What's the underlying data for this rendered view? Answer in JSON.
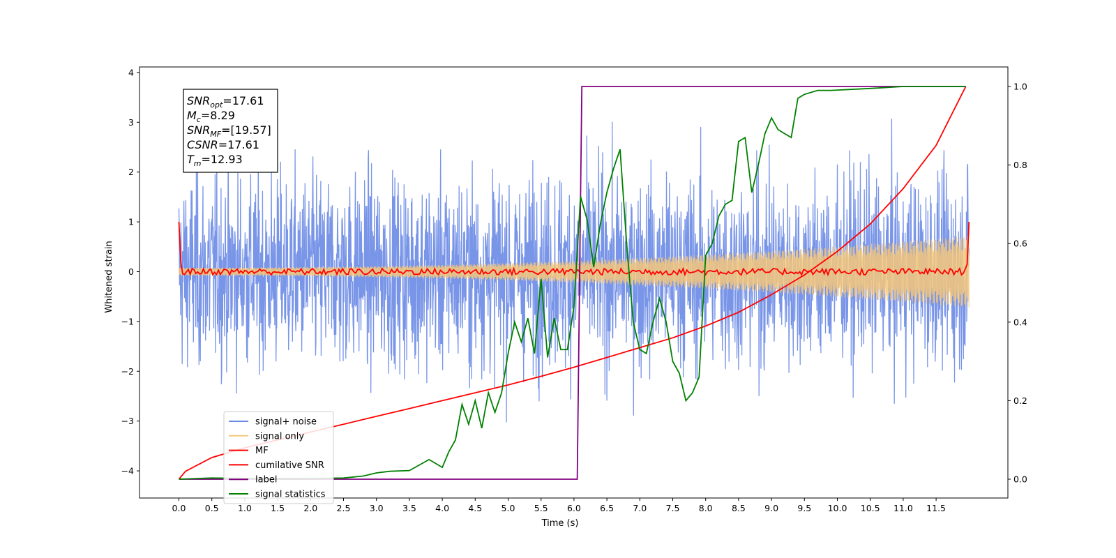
{
  "chart_data": {
    "type": "line",
    "xlabel": "Time (s)",
    "ylabel": "Whitened strain",
    "xlim": [
      -0.6,
      12.6
    ],
    "ylim_left": [
      -4.5,
      4.1
    ],
    "ylim_right": [
      -0.05,
      1.035
    ],
    "x_ticks": [
      "0.0",
      "0.5",
      "1.0",
      "1.5",
      "2.0",
      "2.5",
      "3.0",
      "3.5",
      "4.0",
      "4.5",
      "5.0",
      "5.5",
      "6.0",
      "6.5",
      "7.0",
      "7.5",
      "8.0",
      "8.5",
      "9.0",
      "9.5",
      "10.0",
      "10.5",
      "11.0",
      "11.5"
    ],
    "y_ticks_left": [
      "4",
      "3",
      "2",
      "1",
      "0",
      "−1",
      "−2",
      "−3",
      "−4"
    ],
    "y_ticks_right": [
      "1.0",
      "0.8",
      "0.6",
      "0.4",
      "0.2",
      "0.0"
    ],
    "annotation": {
      "lines": [
        {
          "base": "SNR",
          "sub": "opt",
          "value": "=17.61"
        },
        {
          "base": "M",
          "sub": "c",
          "value": "=8.29"
        },
        {
          "base": "SNR",
          "sub": "MF",
          "value": "=[19.57]"
        },
        {
          "base": "CSNR",
          "sub": "",
          "value": "=17.61"
        },
        {
          "base": "T",
          "sub": "m",
          "value": "=12.93"
        }
      ]
    },
    "legend": {
      "placement": "lower-left",
      "entries": [
        {
          "label": "signal+ noise",
          "color": "#6a8ae6"
        },
        {
          "label": "signal only",
          "color": "#f5c77a"
        },
        {
          "label": "MF",
          "color": "#ff0000"
        },
        {
          "label": "cumilative SNR",
          "color": "#ff0000"
        },
        {
          "label": "label",
          "color": "#800080"
        },
        {
          "label": "signal statistics",
          "color": "#008000"
        }
      ]
    },
    "series": [
      {
        "name": "signal+ noise",
        "axis": "left",
        "color": "#6a8ae6",
        "x_range": [
          0,
          12
        ],
        "amplitude": 1.0,
        "description": "dense whitened noise"
      },
      {
        "name": "signal only",
        "axis": "left",
        "color": "#f5c77a",
        "x_range": [
          0,
          12
        ],
        "amplitude_start": 0.08,
        "amplitude_end": 0.72
      },
      {
        "name": "MF",
        "axis": "left",
        "color": "#ff0000",
        "x_range": [
          0,
          12
        ],
        "endpoints": [
          1.0,
          1.0
        ],
        "baseline": 0.0
      },
      {
        "name": "cumilative SNR",
        "axis": "right",
        "color": "#ff0000",
        "x": [
          0,
          0.1,
          0.5,
          1,
          1.5,
          2,
          2.5,
          3,
          3.5,
          4,
          4.5,
          5,
          5.5,
          6,
          6.5,
          7,
          7.5,
          8,
          8.5,
          9,
          9.5,
          10,
          10.5,
          11,
          11.5,
          11.95
        ],
        "y": [
          0.0,
          0.02,
          0.055,
          0.08,
          0.1,
          0.12,
          0.14,
          0.16,
          0.18,
          0.2,
          0.22,
          0.24,
          0.262,
          0.285,
          0.31,
          0.335,
          0.36,
          0.39,
          0.425,
          0.47,
          0.52,
          0.58,
          0.65,
          0.74,
          0.85,
          1.0
        ]
      },
      {
        "name": "label",
        "axis": "right",
        "color": "#800080",
        "x": [
          0,
          6.05,
          6.12,
          11.95
        ],
        "y": [
          0,
          0,
          1,
          1
        ]
      },
      {
        "name": "signal statistics",
        "axis": "right",
        "color": "#008000",
        "x": [
          0,
          0.5,
          1,
          1.5,
          2,
          2.5,
          2.8,
          3.0,
          3.2,
          3.5,
          3.8,
          4.0,
          4.1,
          4.2,
          4.3,
          4.4,
          4.5,
          4.6,
          4.7,
          4.8,
          4.9,
          5.0,
          5.1,
          5.2,
          5.3,
          5.4,
          5.5,
          5.6,
          5.7,
          5.8,
          5.9,
          6.0,
          6.1,
          6.2,
          6.3,
          6.4,
          6.5,
          6.6,
          6.7,
          6.8,
          6.9,
          7.0,
          7.1,
          7.2,
          7.3,
          7.4,
          7.5,
          7.6,
          7.7,
          7.8,
          7.9,
          8.0,
          8.1,
          8.2,
          8.3,
          8.4,
          8.5,
          8.6,
          8.7,
          8.8,
          8.9,
          9.0,
          9.1,
          9.2,
          9.3,
          9.4,
          9.5,
          9.7,
          9.9,
          10.5,
          11,
          11.5,
          11.95
        ],
        "y": [
          0.0,
          0.003,
          0.002,
          0.002,
          0.002,
          0.003,
          0.008,
          0.016,
          0.02,
          0.022,
          0.05,
          0.03,
          0.07,
          0.1,
          0.19,
          0.14,
          0.2,
          0.13,
          0.22,
          0.17,
          0.22,
          0.32,
          0.4,
          0.35,
          0.41,
          0.32,
          0.51,
          0.31,
          0.41,
          0.33,
          0.33,
          0.44,
          0.72,
          0.66,
          0.54,
          0.65,
          0.73,
          0.79,
          0.84,
          0.6,
          0.4,
          0.33,
          0.32,
          0.4,
          0.46,
          0.4,
          0.3,
          0.27,
          0.2,
          0.22,
          0.26,
          0.57,
          0.6,
          0.67,
          0.7,
          0.71,
          0.86,
          0.87,
          0.73,
          0.8,
          0.88,
          0.92,
          0.89,
          0.88,
          0.87,
          0.97,
          0.98,
          0.99,
          0.99,
          0.995,
          1.0,
          1.0,
          1.0
        ]
      }
    ]
  }
}
